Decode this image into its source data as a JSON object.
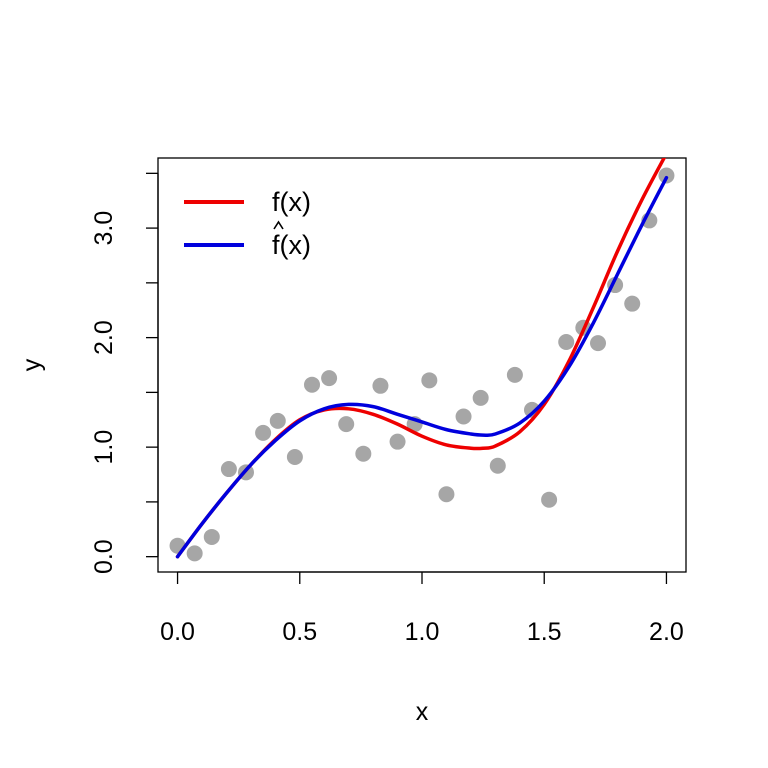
{
  "chart_data": {
    "type": "scatter",
    "title": "",
    "xlabel": "x",
    "ylabel": "y",
    "xlim": [
      -0.08,
      2.08
    ],
    "ylim": [
      -0.14,
      3.64
    ],
    "x_ticks": [
      0.0,
      0.5,
      1.0,
      1.5,
      2.0
    ],
    "x_tick_labels": [
      "0.0",
      "0.5",
      "1.0",
      "1.5",
      "2.0"
    ],
    "y_ticks": [
      0.0,
      0.5,
      1.0,
      1.5,
      2.0,
      2.5,
      3.0,
      3.5
    ],
    "y_tick_labels": [
      "0.0",
      "",
      "1.0",
      "",
      "2.0",
      "",
      "3.0",
      ""
    ],
    "grid": false,
    "legend_position": "top-left",
    "points": {
      "color": "#a6a6a6",
      "x": [
        0.0,
        0.07,
        0.14,
        0.21,
        0.28,
        0.35,
        0.41,
        0.48,
        0.55,
        0.62,
        0.69,
        0.76,
        0.83,
        0.9,
        0.97,
        1.03,
        1.1,
        1.17,
        1.24,
        1.31,
        1.38,
        1.45,
        1.52,
        1.59,
        1.66,
        1.72,
        1.79,
        1.86,
        1.93,
        2.0
      ],
      "y": [
        0.1,
        0.03,
        0.18,
        0.8,
        0.77,
        1.13,
        1.24,
        0.91,
        1.57,
        1.63,
        1.21,
        0.94,
        1.56,
        1.05,
        1.21,
        1.61,
        0.57,
        1.28,
        1.45,
        0.83,
        1.66,
        1.34,
        0.52,
        1.96,
        2.09,
        1.95,
        2.48,
        2.31,
        3.07,
        3.48
      ]
    },
    "series": [
      {
        "name": "f(x)",
        "color": "#ee0000",
        "x": [
          0.0,
          0.1,
          0.2,
          0.3,
          0.4,
          0.5,
          0.6,
          0.7,
          0.8,
          0.9,
          1.0,
          1.1,
          1.2,
          1.25,
          1.3,
          1.4,
          1.5,
          1.6,
          1.7,
          1.8,
          1.9,
          2.0
        ],
        "y": [
          0.0,
          0.3,
          0.58,
          0.84,
          1.07,
          1.25,
          1.34,
          1.35,
          1.3,
          1.21,
          1.1,
          1.02,
          0.99,
          0.99,
          1.01,
          1.14,
          1.39,
          1.78,
          2.27,
          2.79,
          3.26,
          3.68
        ]
      },
      {
        "name": "f(x)",
        "color": "#0000dd",
        "x": [
          0.0,
          0.1,
          0.2,
          0.3,
          0.4,
          0.5,
          0.6,
          0.7,
          0.8,
          0.9,
          1.0,
          1.1,
          1.2,
          1.25,
          1.3,
          1.4,
          1.5,
          1.6,
          1.7,
          1.8,
          1.9,
          2.0
        ],
        "y": [
          0.0,
          0.3,
          0.58,
          0.84,
          1.06,
          1.24,
          1.35,
          1.39,
          1.37,
          1.3,
          1.23,
          1.16,
          1.12,
          1.11,
          1.12,
          1.22,
          1.42,
          1.73,
          2.13,
          2.58,
          3.03,
          3.46
        ]
      }
    ]
  }
}
